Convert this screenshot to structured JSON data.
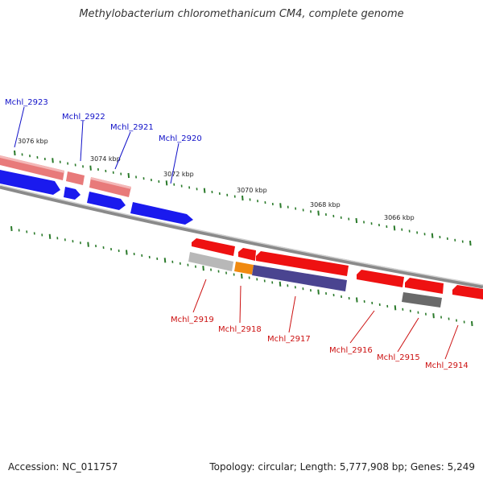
{
  "title": "Methylobacterium chloromethanicum CM4, complete genome",
  "footer": {
    "accession": "Accession: NC_011757",
    "topology": "Topology: circular; Length: 5,777,908 bp; Genes: 5,249"
  },
  "ruler_labels": [
    "3076 kbp",
    "3074 kbp",
    "3072 kbp",
    "3070 kbp",
    "3068 kbp",
    "3066 kbp"
  ],
  "colors": {
    "forward_label": "#1010c8",
    "reverse_label": "#cc1010",
    "cds_forward": "#1a1aee",
    "cds_reverse": "#ee1111",
    "pseudo_pink": "#e87a7a",
    "grey_gene": "#9a9a9a",
    "orange_gene": "#f08a10",
    "purple_gene": "#4a4490",
    "backbone": "#8a8a8a",
    "tick": "#2a7a2a"
  },
  "genes_forward": [
    "Mchl_2923",
    "Mchl_2922",
    "Mchl_2921",
    "Mchl_2920"
  ],
  "genes_reverse": [
    "Mchl_2919",
    "Mchl_2918",
    "Mchl_2917",
    "Mchl_2916",
    "Mchl_2915",
    "Mchl_2914"
  ]
}
